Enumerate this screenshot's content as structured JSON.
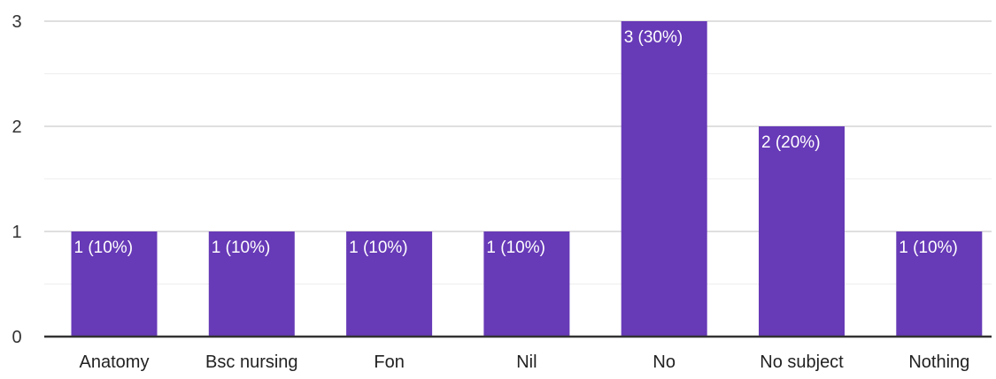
{
  "chart_data": {
    "type": "bar",
    "title": "",
    "xlabel": "",
    "ylabel": "",
    "categories": [
      "Anatomy",
      "Bsc nursing",
      "Fon",
      "Nil",
      "No",
      "No subject",
      "Nothing"
    ],
    "values": [
      1,
      1,
      1,
      1,
      3,
      2,
      1
    ],
    "data_labels": [
      "1 (10%)",
      "1 (10%)",
      "1 (10%)",
      "1 (10%)",
      "3 (30%)",
      "2 (20%)",
      "1 (10%)"
    ],
    "yticks": [
      "0",
      "1",
      "2",
      "3"
    ],
    "ylim": [
      0,
      3
    ],
    "grid": true,
    "legend": "none",
    "colors": {
      "bar": "#673AB7",
      "major_grid": "#cccccc",
      "minor_grid": "#eeeeee",
      "baseline": "#333333"
    }
  }
}
